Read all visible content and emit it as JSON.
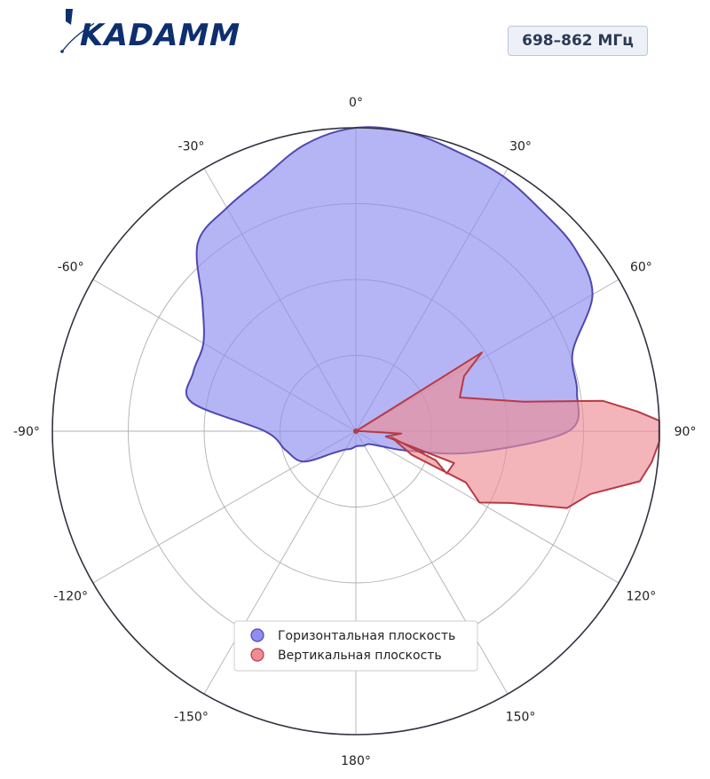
{
  "logo": {
    "text": "KADAMM",
    "color": "#0e2f6e"
  },
  "band_badge": "698–862 МГц",
  "chart_data": {
    "type": "polar",
    "title": "",
    "theta_unit": "degrees",
    "theta_zero": "top",
    "theta_direction": "clockwise",
    "theta_ticks": [
      0,
      30,
      60,
      90,
      120,
      150,
      180,
      -150,
      -120,
      -90,
      -60,
      -30
    ],
    "theta_tick_labels": [
      "0°",
      "30°",
      "60°",
      "90°",
      "120°",
      "150°",
      "180°",
      "-150°",
      "-120°",
      "-90°",
      "-60°",
      "-30°"
    ],
    "r_range": [
      0,
      1
    ],
    "r_gridlines": [
      0.25,
      0.5,
      0.75,
      1.0
    ],
    "r_tick_labels_shown": false,
    "grid": true,
    "legend_position": "lower-center",
    "series": [
      {
        "name": "Горизонтальная плоскость",
        "color": "#5048b0",
        "fill": "#8e8ef0",
        "points": [
          [
            0,
            1.0
          ],
          [
            10,
            1.0
          ],
          [
            20,
            0.98
          ],
          [
            30,
            0.97
          ],
          [
            40,
            0.95
          ],
          [
            50,
            0.94
          ],
          [
            60,
            0.9
          ],
          [
            70,
            0.76
          ],
          [
            80,
            0.74
          ],
          [
            90,
            0.7
          ],
          [
            100,
            0.4
          ],
          [
            110,
            0.19
          ],
          [
            120,
            0.1
          ],
          [
            135,
            0.06
          ],
          [
            150,
            0.055
          ],
          [
            165,
            0.05
          ],
          [
            180,
            0.05
          ],
          [
            -165,
            0.06
          ],
          [
            -150,
            0.07
          ],
          [
            -135,
            0.1
          ],
          [
            -120,
            0.2
          ],
          [
            -105,
            0.24
          ],
          [
            -90,
            0.3
          ],
          [
            -80,
            0.55
          ],
          [
            -70,
            0.57
          ],
          [
            -60,
            0.58
          ],
          [
            -50,
            0.66
          ],
          [
            -40,
            0.81
          ],
          [
            -30,
            0.85
          ],
          [
            -20,
            0.89
          ],
          [
            -10,
            0.96
          ]
        ]
      },
      {
        "name": "Вертикальная плоскость",
        "color": "#b83a45",
        "fill": "#ec8d94",
        "points": [
          [
            0,
            0.0
          ],
          [
            58,
            0.49
          ],
          [
            63,
            0.4
          ],
          [
            72,
            0.36
          ],
          [
            80,
            0.56
          ],
          [
            83,
            0.82
          ],
          [
            86,
            0.93
          ],
          [
            88,
            1.0
          ],
          [
            92,
            1.0
          ],
          [
            96,
            0.98
          ],
          [
            100,
            0.95
          ],
          [
            105,
            0.8
          ],
          [
            110,
            0.74
          ],
          [
            115,
            0.56
          ],
          [
            120,
            0.47
          ],
          [
            115,
            0.4
          ],
          [
            113,
            0.2
          ],
          [
            100,
            0.12
          ],
          [
            110,
            0.28
          ],
          [
            115,
            0.33
          ],
          [
            108,
            0.34
          ],
          [
            100,
            0.1
          ],
          [
            93,
            0.15
          ],
          [
            90,
            0.02
          ],
          [
            0,
            0.0
          ]
        ]
      }
    ]
  }
}
